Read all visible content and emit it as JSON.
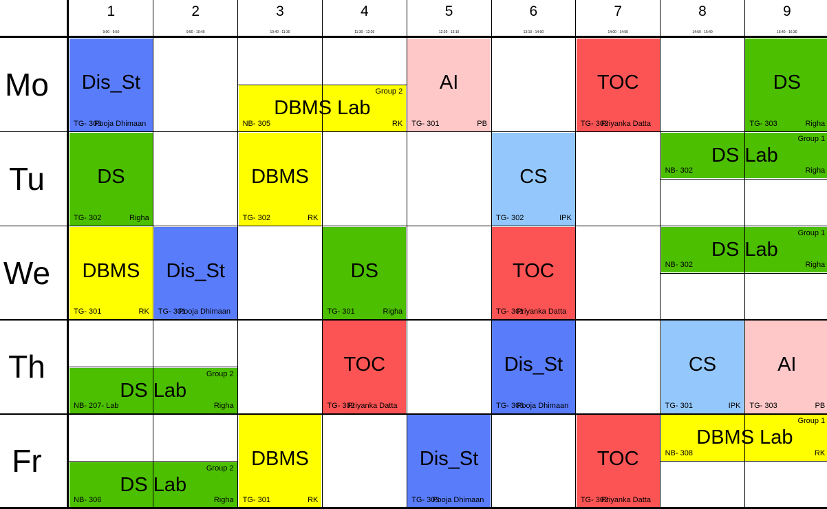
{
  "colors": {
    "Dis_St": "#597cfb",
    "DS": "#4cbf00",
    "DBMS": "#ffff00",
    "AI": "#ffc8c8",
    "TOC": "#fc5454",
    "CS": "#94c8fc"
  },
  "periods": [
    {
      "num": "1",
      "time": "9:00 - 9:50"
    },
    {
      "num": "2",
      "time": "9:50 - 10:40"
    },
    {
      "num": "3",
      "time": "10:40 - 11:30"
    },
    {
      "num": "4",
      "time": "11:30 - 12:20"
    },
    {
      "num": "5",
      "time": "12:20 - 13:10"
    },
    {
      "num": "6",
      "time": "13:10 - 14:00"
    },
    {
      "num": "7",
      "time": "14:00 - 14:50"
    },
    {
      "num": "8",
      "time": "14:50 - 15:40"
    },
    {
      "num": "9",
      "time": "15:40 - 16:30"
    }
  ],
  "days": [
    "Mo",
    "Tu",
    "We",
    "Th",
    "Fr"
  ],
  "entries": [
    {
      "day": 0,
      "start": 0,
      "span": 1,
      "half": "full",
      "subject": "Dis_St",
      "room": "TG- 303",
      "teacher": "Pooja Dhimaan",
      "group": ""
    },
    {
      "day": 0,
      "start": 2,
      "span": 2,
      "half": "bottom",
      "subject": "DBMS Lab",
      "room": "NB- 305",
      "teacher": "RK",
      "group": "Group 2"
    },
    {
      "day": 0,
      "start": 4,
      "span": 1,
      "half": "full",
      "subject": "AI",
      "room": "TG- 301",
      "teacher": "PB",
      "group": ""
    },
    {
      "day": 0,
      "start": 6,
      "span": 1,
      "half": "full",
      "subject": "TOC",
      "room": "TG- 302",
      "teacher": "Priyanka Datta",
      "group": ""
    },
    {
      "day": 0,
      "start": 8,
      "span": 1,
      "half": "full",
      "subject": "DS",
      "room": "TG- 303",
      "teacher": "Righa",
      "group": ""
    },
    {
      "day": 1,
      "start": 0,
      "span": 1,
      "half": "full",
      "subject": "DS",
      "room": "TG- 302",
      "teacher": "Righa",
      "group": ""
    },
    {
      "day": 1,
      "start": 2,
      "span": 1,
      "half": "full",
      "subject": "DBMS",
      "room": "TG- 302",
      "teacher": "RK",
      "group": ""
    },
    {
      "day": 1,
      "start": 5,
      "span": 1,
      "half": "full",
      "subject": "CS",
      "room": "TG- 302",
      "teacher": "IPK",
      "group": ""
    },
    {
      "day": 1,
      "start": 7,
      "span": 2,
      "half": "top",
      "subject": "DS Lab",
      "room": "NB- 302",
      "teacher": "Righa",
      "group": "Group 1"
    },
    {
      "day": 2,
      "start": 0,
      "span": 1,
      "half": "full",
      "subject": "DBMS",
      "room": "TG- 301",
      "teacher": "RK",
      "group": ""
    },
    {
      "day": 2,
      "start": 1,
      "span": 1,
      "half": "full",
      "subject": "Dis_St",
      "room": "TG- 301",
      "teacher": "Pooja Dhimaan",
      "group": ""
    },
    {
      "day": 2,
      "start": 3,
      "span": 1,
      "half": "full",
      "subject": "DS",
      "room": "TG- 301",
      "teacher": "Righa",
      "group": ""
    },
    {
      "day": 2,
      "start": 5,
      "span": 1,
      "half": "full",
      "subject": "TOC",
      "room": "TG- 301",
      "teacher": "Priyanka Datta",
      "group": ""
    },
    {
      "day": 2,
      "start": 7,
      "span": 2,
      "half": "top",
      "subject": "DS Lab",
      "room": "NB- 302",
      "teacher": "Righa",
      "group": "Group 1"
    },
    {
      "day": 3,
      "start": 0,
      "span": 2,
      "half": "bottom",
      "subject": "DS Lab",
      "room": "NB- 207- Lab",
      "teacher": "Righa",
      "group": "Group 2"
    },
    {
      "day": 3,
      "start": 3,
      "span": 1,
      "half": "full",
      "subject": "TOC",
      "room": "TG- 302",
      "teacher": "Priyanka Datta",
      "group": ""
    },
    {
      "day": 3,
      "start": 5,
      "span": 1,
      "half": "full",
      "subject": "Dis_St",
      "room": "TG- 303",
      "teacher": "Pooja Dhimaan",
      "group": ""
    },
    {
      "day": 3,
      "start": 7,
      "span": 1,
      "half": "full",
      "subject": "CS",
      "room": "TG- 301",
      "teacher": "IPK",
      "group": ""
    },
    {
      "day": 3,
      "start": 8,
      "span": 1,
      "half": "full",
      "subject": "AI",
      "room": "TG- 303",
      "teacher": "PB",
      "group": ""
    },
    {
      "day": 4,
      "start": 0,
      "span": 2,
      "half": "bottom",
      "subject": "DS Lab",
      "room": "NB- 306",
      "teacher": "Righa",
      "group": "Group 2"
    },
    {
      "day": 4,
      "start": 2,
      "span": 1,
      "half": "full",
      "subject": "DBMS",
      "room": "TG- 301",
      "teacher": "RK",
      "group": ""
    },
    {
      "day": 4,
      "start": 4,
      "span": 1,
      "half": "full",
      "subject": "Dis_St",
      "room": "TG- 303",
      "teacher": "Pooja Dhimaan",
      "group": ""
    },
    {
      "day": 4,
      "start": 6,
      "span": 1,
      "half": "full",
      "subject": "TOC",
      "room": "TG- 302",
      "teacher": "Priyanka Datta",
      "group": ""
    },
    {
      "day": 4,
      "start": 7,
      "span": 2,
      "half": "top",
      "subject": "DBMS Lab",
      "room": "NB- 308",
      "teacher": "RK",
      "group": "Group 1"
    }
  ]
}
